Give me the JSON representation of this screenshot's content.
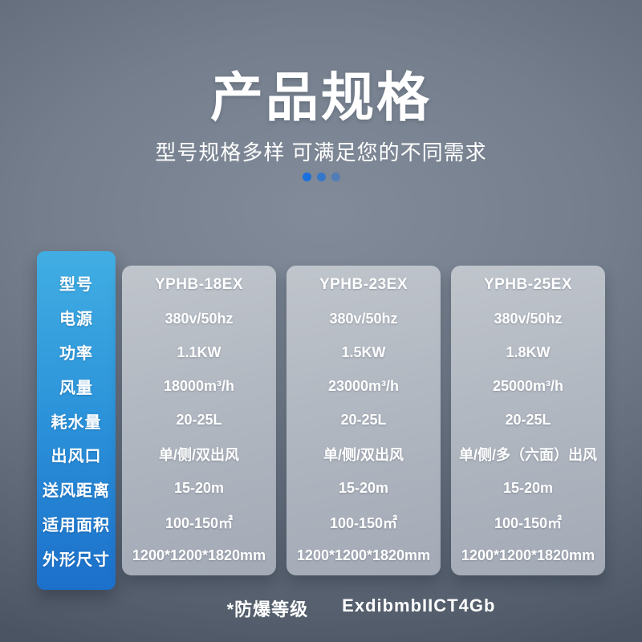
{
  "header": {
    "title": "产品规格",
    "subtitle": "型号规格多样 可满足您的不同需求",
    "carousel": {
      "dot_count": 3,
      "active_index": 0
    }
  },
  "table": {
    "row_labels": [
      "型号",
      "电源",
      "功率",
      "风量",
      "耗水量",
      "出风口",
      "送风距离",
      "适用面积",
      "外形尺寸"
    ],
    "columns": [
      {
        "values": [
          "YPHB-18EX",
          "380v/50hz",
          "1.1KW",
          "18000m³/h",
          "20-25L",
          "单/侧/双出风",
          "15-20m",
          "100-150㎡",
          "1200*1200*1820mm"
        ]
      },
      {
        "values": [
          "YPHB-23EX",
          "380v/50hz",
          "1.5KW",
          "23000m³/h",
          "20-25L",
          "单/侧/双出风",
          "15-20m",
          "100-150㎡",
          "1200*1200*1820mm"
        ]
      },
      {
        "values": [
          "YPHB-25EX",
          "380v/50hz",
          "1.8KW",
          "25000m³/h",
          "20-25L",
          "单/侧/多（六面）出风",
          "15-20m",
          "100-150㎡",
          "1200*1200*1820mm"
        ]
      }
    ]
  },
  "footer": {
    "note_label": "*防爆等级",
    "note_value": "ExdibmbIICT4Gb"
  },
  "colors": {
    "background_center": "#818b99",
    "background_edge": "#4a5462",
    "accent_blue_top": "#41aee3",
    "accent_blue_bottom": "#1c70cb",
    "dot_active": "#1a70de",
    "card_gray_top": "#c0c5cc",
    "card_gray_bottom": "#a3aab6",
    "text": "#ffffff"
  }
}
